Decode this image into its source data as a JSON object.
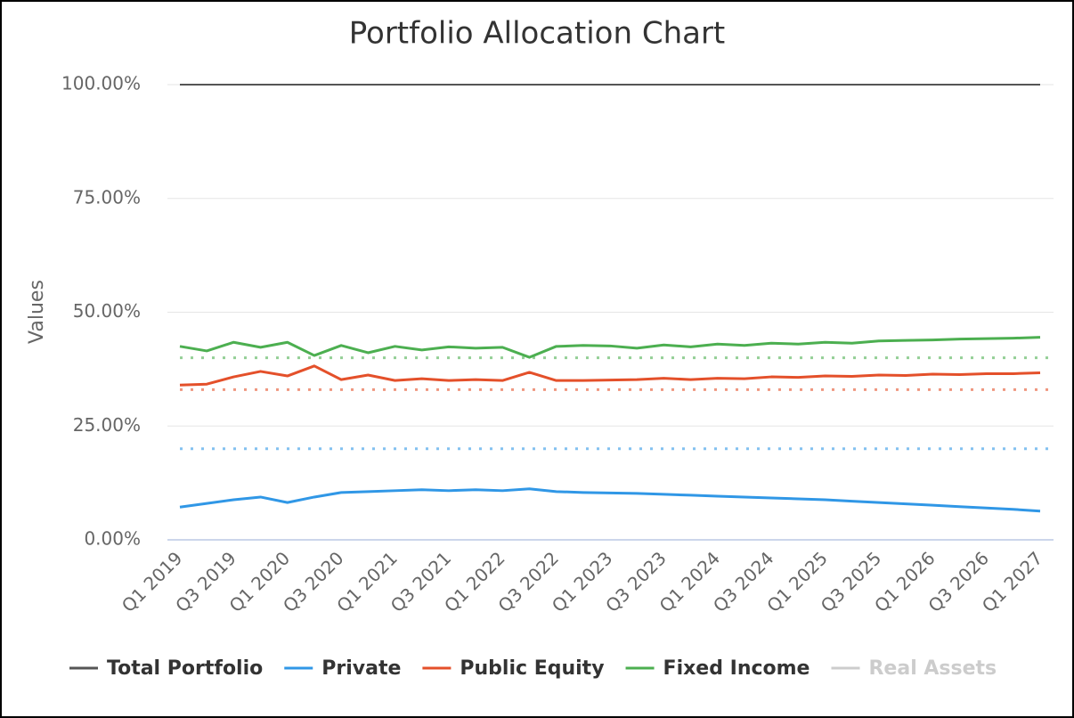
{
  "chart_data": {
    "type": "line",
    "title": "Portfolio Allocation Chart",
    "y_label": "Values",
    "categories": [
      "Q1 2019",
      null,
      "Q3 2019",
      null,
      "Q1 2020",
      null,
      "Q3 2020",
      null,
      "Q1 2021",
      null,
      "Q3 2021",
      null,
      "Q1 2022",
      null,
      "Q3 2022",
      null,
      "Q1 2023",
      null,
      "Q3 2023",
      null,
      "Q1 2024",
      null,
      "Q3 2024",
      null,
      "Q1 2025",
      null,
      "Q3 2025",
      null,
      "Q1 2026",
      null,
      "Q3 2026",
      null,
      "Q1 2027"
    ],
    "ylim": [
      0,
      100
    ],
    "yticks": [
      {
        "value": 0,
        "label": "0.00%"
      },
      {
        "value": 25,
        "label": "25.00%"
      },
      {
        "value": 50,
        "label": "50.00%"
      },
      {
        "value": 75,
        "label": "75.00%"
      },
      {
        "value": 100,
        "label": "100.00%"
      }
    ],
    "grid": true,
    "legend": "bottom",
    "series": [
      {
        "name": "Total Portfolio",
        "color": "#555555",
        "values": [
          100,
          100,
          100,
          100,
          100,
          100,
          100,
          100,
          100,
          100,
          100,
          100,
          100,
          100,
          100,
          100,
          100,
          100,
          100,
          100,
          100,
          100,
          100,
          100,
          100,
          100,
          100,
          100,
          100,
          100,
          100,
          100,
          100
        ]
      },
      {
        "name": "Private",
        "color": "#3097e6",
        "target": 20,
        "values": [
          7.2,
          8.0,
          8.8,
          9.4,
          8.2,
          9.4,
          10.4,
          10.6,
          10.8,
          11.0,
          10.8,
          11.0,
          10.8,
          11.2,
          10.6,
          10.4,
          10.3,
          10.2,
          10.0,
          9.8,
          9.6,
          9.4,
          9.2,
          9.0,
          8.8,
          8.5,
          8.2,
          7.9,
          7.6,
          7.3,
          7.0,
          6.7,
          6.3
        ]
      },
      {
        "name": "Public Equity",
        "color": "#e4502a",
        "target": 33,
        "values": [
          34.0,
          34.2,
          35.8,
          37.0,
          36.0,
          38.2,
          35.2,
          36.2,
          35.0,
          35.4,
          35.0,
          35.2,
          35.0,
          36.8,
          35.0,
          35.0,
          35.1,
          35.2,
          35.5,
          35.2,
          35.5,
          35.4,
          35.8,
          35.7,
          36.0,
          35.9,
          36.2,
          36.1,
          36.4,
          36.3,
          36.5,
          36.5,
          36.7
        ]
      },
      {
        "name": "Fixed Income",
        "color": "#4caf50",
        "target": 40,
        "values": [
          42.5,
          41.5,
          43.4,
          42.3,
          43.4,
          40.5,
          42.7,
          41.1,
          42.5,
          41.7,
          42.4,
          42.1,
          42.3,
          40.1,
          42.5,
          42.7,
          42.6,
          42.1,
          42.8,
          42.4,
          43.0,
          42.7,
          43.2,
          43.0,
          43.4,
          43.2,
          43.7,
          43.8,
          43.9,
          44.1,
          44.2,
          44.3,
          44.5
        ]
      },
      {
        "name": "Real Assets",
        "color": "#cccccc",
        "hidden": true,
        "values": [
          null,
          null,
          null,
          null,
          null,
          null,
          null,
          null,
          null,
          null,
          null,
          null,
          null,
          null,
          null,
          null,
          null,
          null,
          null,
          null,
          null,
          null,
          null,
          null,
          null,
          null,
          null,
          null,
          null,
          null,
          null,
          null,
          null
        ]
      }
    ]
  }
}
